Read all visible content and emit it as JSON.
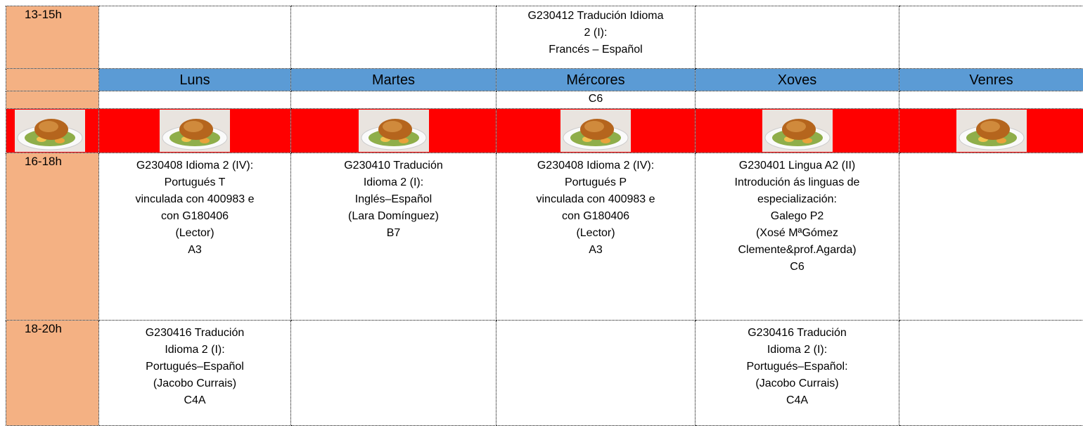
{
  "top_row": {
    "time": "13-15h",
    "cells": [
      [],
      [],
      [
        "G230412 Tradución Idioma",
        "2 (I):",
        "Francés – Español"
      ],
      [],
      []
    ]
  },
  "days": [
    "Luns",
    "Martes",
    "Mércores",
    "Xoves",
    "Venres"
  ],
  "rooms": [
    [],
    [],
    [
      "C6"
    ],
    [],
    []
  ],
  "afternoon_rows": [
    {
      "time": "16-18h",
      "cells": [
        [
          "G230408 Idioma 2 (IV):",
          "Portugués T",
          "vinculada con 400983 e",
          "con G180406",
          "(Lector)",
          "A3"
        ],
        [
          "G230410 Tradución",
          "Idioma 2 (I):",
          "Inglés–Español",
          "(Lara Domínguez)",
          "B7"
        ],
        [
          "G230408 Idioma 2 (IV):",
          "Portugués P",
          "vinculada con 400983 e",
          "con G180406",
          "(Lector)",
          "A3"
        ],
        [
          "G230401 Lingua A2 (II)",
          "Introdución ás linguas de",
          "especialización:",
          "Galego P2",
          "(Xosé MªGómez",
          "Clemente&prof.Agarda)",
          "C6"
        ],
        []
      ]
    },
    {
      "time": "18-20h",
      "cells": [
        [
          "G230416 Tradución",
          "Idioma 2  (I):",
          "Portugués–Español",
          "(Jacobo Currais)",
          "C4A"
        ],
        [],
        [],
        [
          "G230416 Tradución",
          "Idioma 2  (I):",
          "Portugués–Español:",
          "(Jacobo Currais)",
          "C4A"
        ],
        []
      ]
    }
  ]
}
